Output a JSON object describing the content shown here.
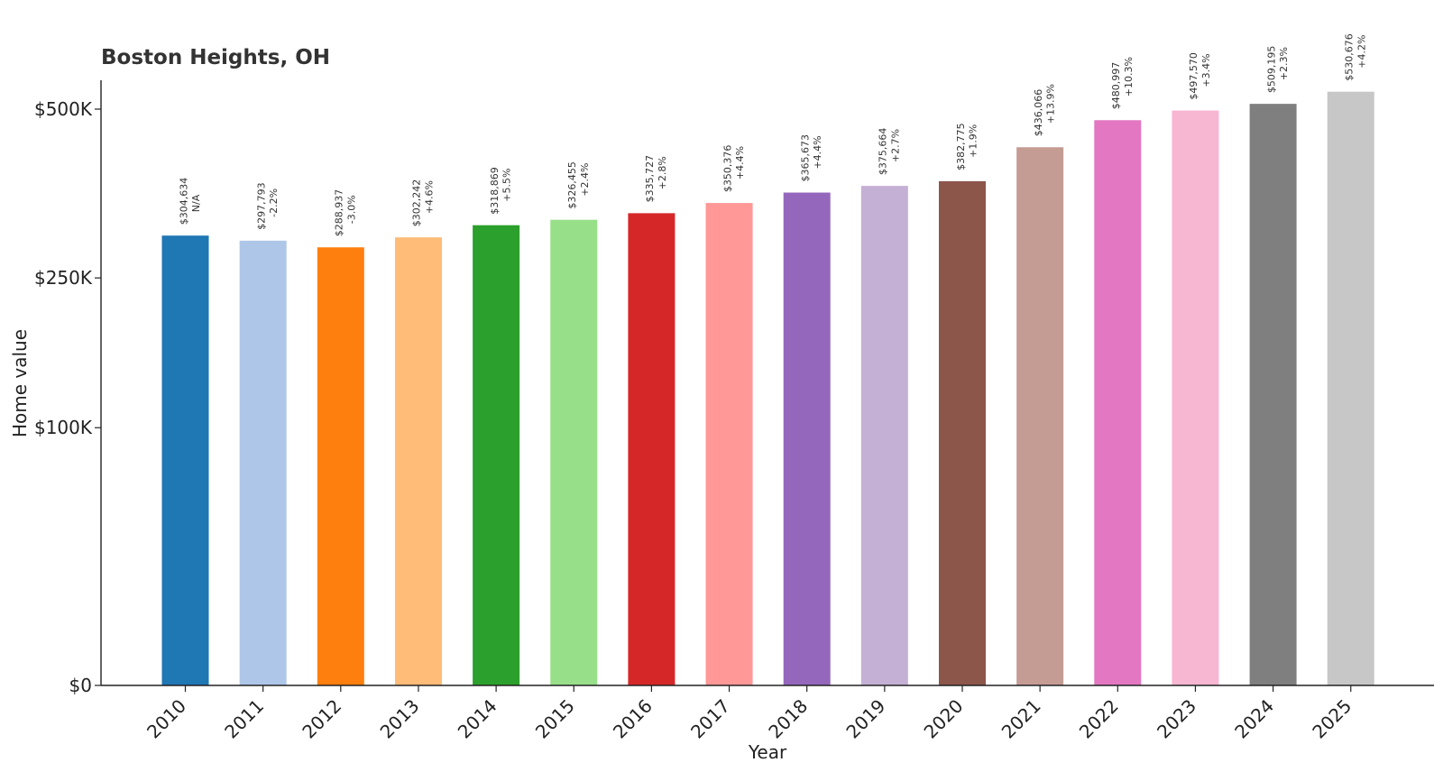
{
  "chart_data": {
    "type": "bar",
    "title": "Boston Heights, OH",
    "xlabel": "Year",
    "ylabel": "Home value",
    "categories": [
      "2010",
      "2011",
      "2012",
      "2013",
      "2014",
      "2015",
      "2016",
      "2017",
      "2018",
      "2019",
      "2020",
      "2021",
      "2022",
      "2023",
      "2024",
      "2025"
    ],
    "values": [
      304634,
      297793,
      288937,
      302242,
      318869,
      326455,
      335727,
      350376,
      365673,
      375664,
      382775,
      436066,
      480997,
      497570,
      509195,
      530676
    ],
    "value_labels": [
      "$304,634",
      "$297,793",
      "$288,937",
      "$302,242",
      "$318,869",
      "$326,455",
      "$335,727",
      "$350,376",
      "$365,673",
      "$375,664",
      "$382,775",
      "$436,066",
      "$480,997",
      "$497,570",
      "$509,195",
      "$530,676"
    ],
    "change_labels": [
      "N/A",
      "-2.2%",
      "-3.0%",
      "+4.6%",
      "+5.5%",
      "+2.4%",
      "+2.8%",
      "+4.4%",
      "+4.4%",
      "+2.7%",
      "+1.9%",
      "+13.9%",
      "+10.3%",
      "+3.4%",
      "+2.3%",
      "+4.2%"
    ],
    "colors": [
      "#1f77b4",
      "#aec7e8",
      "#ff7f0e",
      "#ffbb78",
      "#2ca02c",
      "#98df8a",
      "#d62728",
      "#ff9896",
      "#9467bd",
      "#c5b0d5",
      "#8c564b",
      "#c49c94",
      "#e377c2",
      "#f7b6d2",
      "#7f7f7f",
      "#c7c7c7"
    ],
    "y_scale": "sqrt",
    "yticks": [
      0,
      100000,
      250000,
      500000
    ],
    "ytick_labels": [
      "$0",
      "$100K",
      "$250K",
      "$500K"
    ],
    "grid": false,
    "legend": "none"
  }
}
